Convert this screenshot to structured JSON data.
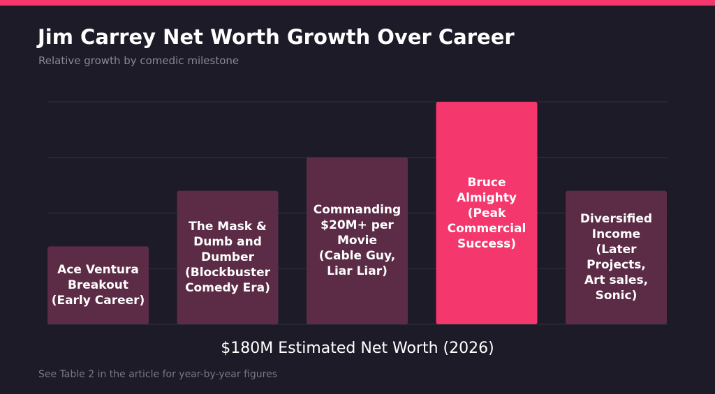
{
  "title": "Jim Carrey Net Worth Growth Over Career",
  "subtitle": "Relative growth by comedic milestone",
  "caption": "$180M Estimated Net Worth (2026)",
  "footnote": "See Table 2 in the article for year-by-year figures",
  "colors": {
    "background": "#1c1b27",
    "accent": "#f4376d",
    "bar": "#5c2b45",
    "highlight_bar": "#f4376d",
    "grid": "#34323f"
  },
  "chart_data": {
    "type": "bar",
    "categories": [
      "Ace Ventura Breakout (Early Career)",
      "The Mask & Dumb and Dumber (Blockbuster Comedy Era)",
      "Commanding $20M+ per Movie (Cable Guy, Liar Liar)",
      "Bruce Almighty (Peak Commercial Success)",
      "Diversified Income (Later Projects, Art sales, Sonic)"
    ],
    "label_lines": [
      [
        "Ace Ventura",
        "Breakout",
        "(Early Career)"
      ],
      [
        "The Mask &",
        "Dumb and",
        "Dumber",
        "(Blockbuster",
        "Comedy Era)"
      ],
      [
        "Commanding",
        "$20M+ per",
        "Movie",
        "(Cable Guy,",
        "Liar Liar)"
      ],
      [
        "Bruce",
        "Almighty",
        "(Peak Commercial",
        "Success)"
      ],
      [
        "Diversified",
        "Income",
        "(Later Projects,",
        "Art sales,",
        "Sonic)"
      ]
    ],
    "values": [
      1.4,
      2.4,
      3.0,
      4.0,
      2.4
    ],
    "highlight_index": 3,
    "ylim": [
      0,
      4
    ],
    "grid": true,
    "xlabel": "",
    "ylabel": ""
  }
}
